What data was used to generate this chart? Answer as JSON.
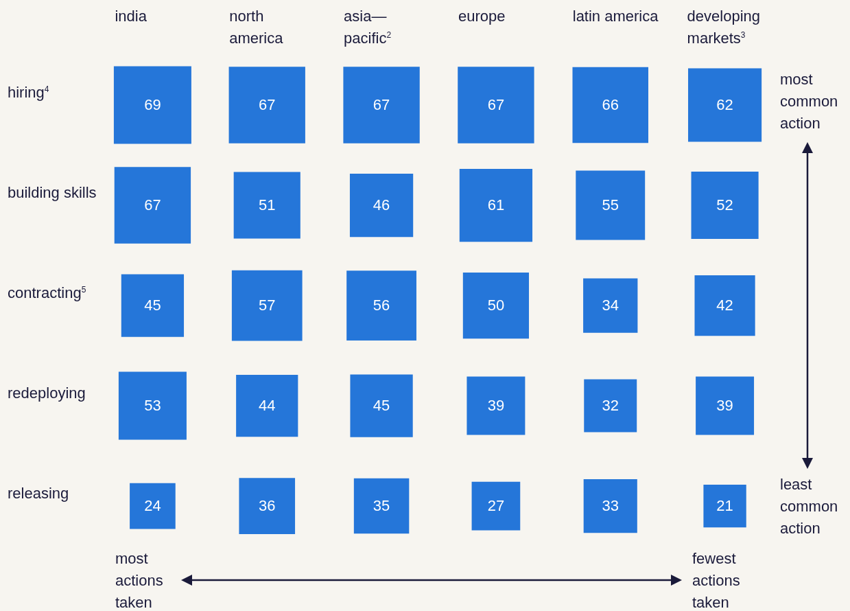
{
  "chart_data": {
    "type": "heatmap",
    "categories": [
      "india",
      "north america",
      "asia—pacific$^{2}$",
      "europe",
      "latin america",
      "developing markets$^{3}$"
    ],
    "y_categories": [
      "hiring$^{4}$",
      "building skills",
      "contracting$^{5}$",
      "redeploying",
      "releasing"
    ],
    "cells": [
      [
        69,
        67,
        67,
        67,
        66,
        62
      ],
      [
        67,
        51,
        46,
        61,
        55,
        52
      ],
      [
        45,
        57,
        56,
        50,
        34,
        42
      ],
      [
        53,
        44,
        45,
        39,
        32,
        39
      ],
      [
        24,
        36,
        35,
        27,
        33,
        21
      ]
    ],
    "color": "#2576d9",
    "data_labels": true,
    "annotations": [
      "most common action",
      "least common action",
      "most actions taken",
      "fewest actions taken"
    ]
  }
}
